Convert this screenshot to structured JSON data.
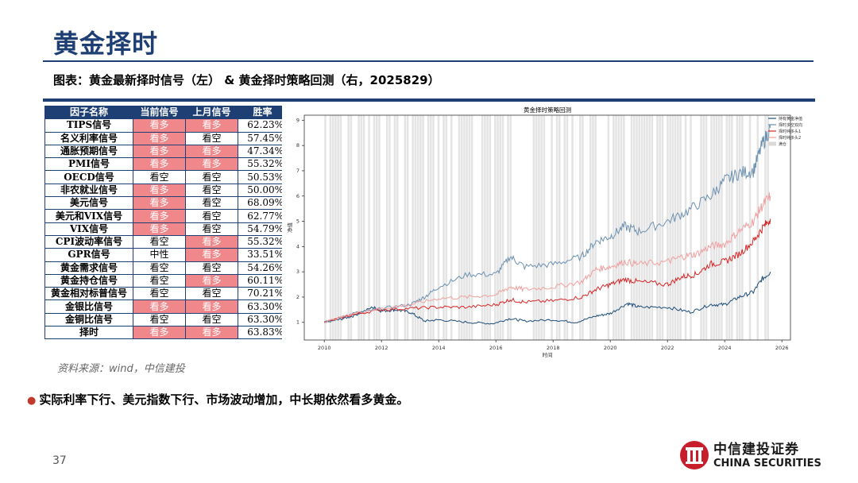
{
  "slide": {
    "title": "黄金择时",
    "caption": "图表：黄金最新择时信号（左） & 黄金择时策略回测（右，2025829）",
    "source": "资料来源：wind，中信建投",
    "bullet": "实际利率下行、美元指数下行、市场波动增加，中长期依然看多黄金。",
    "page_number": "37"
  },
  "logo": {
    "cn": "中信建投证券",
    "en": "CHINA SECURITIES",
    "icon": "china-securities-logo-icon"
  },
  "colors": {
    "brand": "#1d3f73",
    "bull": "#f0878b",
    "accent": "#c0392b"
  },
  "table": {
    "headers": [
      "因子名称",
      "当前信号",
      "上月信号",
      "胜率"
    ],
    "rows": [
      {
        "name": "TIPS信号",
        "cur": "看多",
        "prev": "看多",
        "rate": "62.23%"
      },
      {
        "name": "名义利率信号",
        "cur": "看多",
        "prev": "看空",
        "rate": "57.45%"
      },
      {
        "name": "通胀预期信号",
        "cur": "看多",
        "prev": "看多",
        "rate": "47.34%"
      },
      {
        "name": "PMI信号",
        "cur": "看多",
        "prev": "看多",
        "rate": "55.32%"
      },
      {
        "name": "OECD信号",
        "cur": "看空",
        "prev": "看空",
        "rate": "50.53%"
      },
      {
        "name": "非农就业信号",
        "cur": "看多",
        "prev": "看空",
        "rate": "50.00%"
      },
      {
        "name": "美元信号",
        "cur": "看多",
        "prev": "看空",
        "rate": "68.09%"
      },
      {
        "name": "美元和VIX信号",
        "cur": "看多",
        "prev": "看空",
        "rate": "62.77%"
      },
      {
        "name": "VIX信号",
        "cur": "看多",
        "prev": "看空",
        "rate": "54.79%"
      },
      {
        "name": "CPI波动率信号",
        "cur": "看空",
        "prev": "看多",
        "rate": "55.32%"
      },
      {
        "name": "GPR信号",
        "cur": "中性",
        "prev": "看多",
        "rate": "33.51%"
      },
      {
        "name": "黄金需求信号",
        "cur": "看空",
        "prev": "看空",
        "rate": "54.26%"
      },
      {
        "name": "黄金持仓信号",
        "cur": "看空",
        "prev": "看多",
        "rate": "60.11%"
      },
      {
        "name": "黄金相对标普信号",
        "cur": "看空",
        "prev": "看空",
        "rate": "70.21%"
      },
      {
        "name": "金银比信号",
        "cur": "看多",
        "prev": "看多",
        "rate": "63.30%"
      },
      {
        "name": "金铜比信号",
        "cur": "看空",
        "prev": "看空",
        "rate": "63.30%"
      },
      {
        "name": "择时",
        "cur": "看多",
        "prev": "看多",
        "rate": "63.83%"
      }
    ]
  },
  "chart_data": {
    "type": "line",
    "title": "黄金择时策略回测",
    "xlabel": "时间",
    "ylabel": "净值",
    "xlim": [
      2009.3,
      2026.3
    ],
    "ylim": [
      0.3,
      9.2
    ],
    "x_ticks": [
      "2010",
      "2012",
      "2014",
      "2016",
      "2018",
      "2020",
      "2022",
      "2024",
      "2026"
    ],
    "y_ticks": [
      "1",
      "2",
      "3",
      "4",
      "5",
      "6",
      "7",
      "8",
      "9"
    ],
    "legend_position": "top-right",
    "grid": false,
    "bull_band_color": "#d9d9d9",
    "series": [
      {
        "name": "持有黄金净值",
        "color": "#1f4e79",
        "x": [
          2010.0,
          2010.5,
          2011.0,
          2011.7,
          2012.0,
          2012.5,
          2013.0,
          2013.5,
          2014.0,
          2015.0,
          2015.9,
          2016.5,
          2017.0,
          2018.0,
          2018.8,
          2019.5,
          2020.0,
          2020.6,
          2021.0,
          2022.0,
          2022.8,
          2023.5,
          2024.0,
          2024.5,
          2025.0,
          2025.3,
          2025.6
        ],
        "y": [
          1.0,
          1.1,
          1.25,
          1.6,
          1.45,
          1.5,
          1.4,
          1.05,
          1.1,
          1.0,
          0.95,
          1.15,
          1.05,
          1.1,
          1.0,
          1.25,
          1.35,
          1.75,
          1.6,
          1.6,
          1.4,
          1.7,
          1.7,
          2.0,
          2.2,
          2.7,
          3.0
        ]
      },
      {
        "name": "择时多空双向",
        "color": "#6d91b0",
        "x": [
          2010.0,
          2010.5,
          2011.0,
          2012.0,
          2013.0,
          2013.5,
          2014.0,
          2015.0,
          2016.0,
          2016.5,
          2017.0,
          2018.0,
          2019.0,
          2019.5,
          2020.0,
          2020.5,
          2021.0,
          2022.0,
          2022.7,
          2023.5,
          2024.0,
          2024.5,
          2025.0,
          2025.3,
          2025.6
        ],
        "y": [
          1.0,
          1.15,
          1.35,
          1.55,
          1.7,
          2.0,
          2.4,
          2.9,
          2.9,
          3.6,
          3.2,
          3.3,
          3.6,
          4.2,
          4.4,
          4.8,
          4.6,
          5.0,
          5.4,
          6.0,
          6.6,
          6.9,
          7.0,
          8.0,
          8.7
        ]
      },
      {
        "name": "择时纯多头1",
        "color": "#d62728",
        "x": [
          2010.0,
          2011.0,
          2012.0,
          2013.0,
          2014.0,
          2015.0,
          2016.0,
          2016.5,
          2017.0,
          2018.0,
          2019.0,
          2019.5,
          2020.0,
          2020.5,
          2021.0,
          2022.0,
          2022.5,
          2023.0,
          2023.5,
          2024.0,
          2024.5,
          2025.0,
          2025.3,
          2025.6
        ],
        "y": [
          1.0,
          1.3,
          1.5,
          1.55,
          1.6,
          1.6,
          1.7,
          1.9,
          1.8,
          1.85,
          2.0,
          2.3,
          2.5,
          2.7,
          2.6,
          2.5,
          2.8,
          2.9,
          3.3,
          3.4,
          3.7,
          4.2,
          4.7,
          5.1
        ]
      },
      {
        "name": "择时纯多头2",
        "color": "#f0a0a0",
        "x": [
          2010.0,
          2011.0,
          2012.0,
          2013.0,
          2014.0,
          2015.0,
          2016.0,
          2016.5,
          2017.0,
          2018.0,
          2019.0,
          2019.5,
          2020.0,
          2020.5,
          2021.0,
          2022.0,
          2022.5,
          2023.0,
          2023.5,
          2024.0,
          2024.5,
          2025.0,
          2025.3,
          2025.6
        ],
        "y": [
          1.0,
          1.35,
          1.55,
          1.7,
          1.95,
          2.0,
          2.1,
          2.4,
          2.3,
          2.4,
          2.6,
          3.1,
          3.2,
          3.4,
          3.3,
          3.4,
          3.6,
          3.7,
          4.0,
          4.1,
          4.6,
          5.0,
          5.6,
          6.0
        ]
      }
    ],
    "extra_legend": [
      "满仓"
    ]
  }
}
